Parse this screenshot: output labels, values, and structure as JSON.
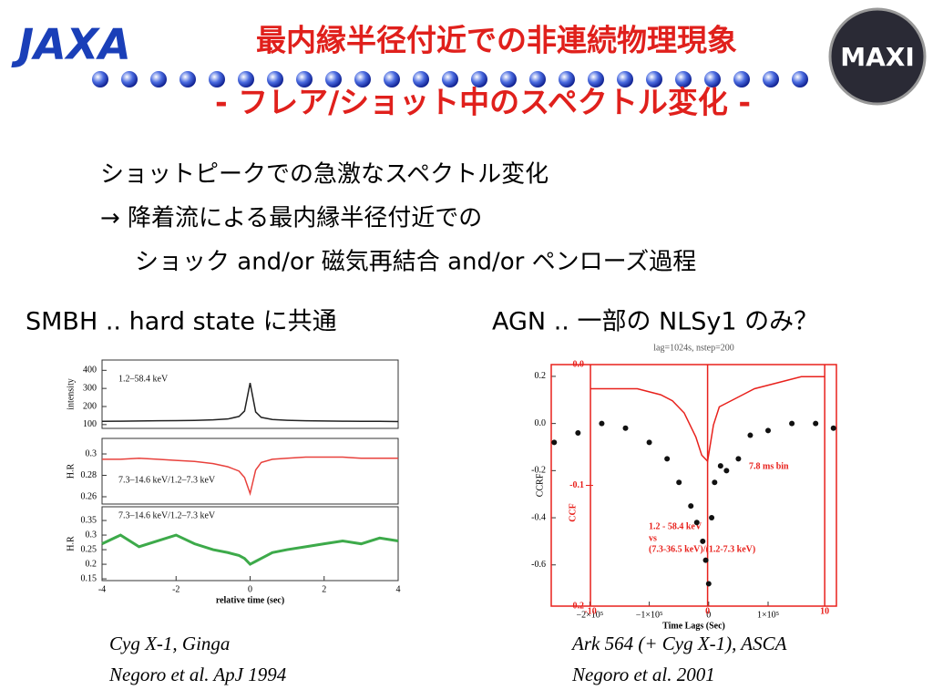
{
  "logos": {
    "left": "JAXA",
    "right": "MAXI"
  },
  "header": {
    "title": "最内縁半径付近での非連続物理現象",
    "subtitle": "- フレア/ショット中のスペクトル変化 -"
  },
  "body": {
    "lines": [
      "ショットピークでの急激なスペクトル変化",
      "→ 降着流による最内縁半径付近での",
      "ショック and/or 磁気再結合 and/or ペンローズ過程"
    ]
  },
  "labels": {
    "left": "SMBH .. hard state に共通",
    "right": "AGN .. 一部の NLSy1 のみ？"
  },
  "chart_data": [
    {
      "type": "line",
      "ylabel": "intensity",
      "annotations": [
        "1.2–58.4 keV"
      ],
      "xlim": [
        -4,
        4
      ],
      "ylim": [
        79,
        457
      ],
      "yticks": [
        100,
        200,
        300,
        400
      ],
      "series": [
        {
          "color": "#222222",
          "x": [
            -4,
            -3.5,
            -3,
            -2.5,
            -2,
            -1.5,
            -1,
            -0.6,
            -0.3,
            -0.15,
            0,
            0.15,
            0.3,
            0.6,
            1,
            1.5,
            2,
            2.5,
            3,
            3.5,
            4
          ],
          "values": [
            118,
            119,
            120,
            121,
            122,
            123,
            126,
            131,
            145,
            175,
            330,
            170,
            140,
            128,
            124,
            121,
            120,
            119,
            118,
            118,
            117
          ]
        }
      ]
    },
    {
      "type": "line",
      "ylabel": "H.R",
      "annotations": [
        "7.3–14.6 keV/1.2–7.3 keV"
      ],
      "xlim": [
        -4,
        4
      ],
      "ylim": [
        0.2532,
        0.3145
      ],
      "yticks": [
        0.26,
        0.28,
        0.3
      ],
      "series": [
        {
          "color": "#e8413c",
          "x": [
            -4,
            -3.5,
            -3,
            -2.5,
            -2,
            -1.5,
            -1,
            -0.6,
            -0.3,
            -0.15,
            0,
            0.15,
            0.3,
            0.6,
            1,
            1.5,
            2,
            2.5,
            3,
            3.5,
            4
          ],
          "values": [
            0.295,
            0.295,
            0.296,
            0.295,
            0.294,
            0.293,
            0.291,
            0.288,
            0.284,
            0.278,
            0.263,
            0.285,
            0.292,
            0.295,
            0.296,
            0.297,
            0.297,
            0.297,
            0.296,
            0.296,
            0.296
          ]
        }
      ]
    },
    {
      "type": "line",
      "ylabel": "H.R",
      "xlabel": "relative time (sec)",
      "annotations": [
        "7.3–14.6 keV/1.2–7.3 keV"
      ],
      "xlim": [
        -4,
        4
      ],
      "xticks": [
        -4,
        -2,
        0,
        2,
        4
      ],
      "ylim": [
        0.144,
        0.397
      ],
      "yticks": [
        0.15,
        0.2,
        0.25,
        0.3,
        0.35
      ],
      "series": [
        {
          "color": "#3daa4a",
          "x": [
            -4,
            -3.5,
            -3,
            -2.5,
            -2,
            -1.5,
            -1,
            -0.6,
            -0.3,
            -0.15,
            0,
            0.15,
            0.3,
            0.6,
            1,
            1.5,
            2,
            2.5,
            3,
            3.5,
            4
          ],
          "values": [
            0.27,
            0.3,
            0.26,
            0.28,
            0.3,
            0.27,
            0.25,
            0.24,
            0.23,
            0.22,
            0.2,
            0.21,
            0.22,
            0.24,
            0.25,
            0.26,
            0.27,
            0.28,
            0.27,
            0.29,
            0.28
          ]
        }
      ]
    },
    {
      "type": "scatter",
      "title": "lag=1024s, nstep=200",
      "ylabel": "CCRF",
      "y2label": "CCF",
      "xlabel": "Time Lags (Sec)",
      "annotations": [
        "1.2 - 58.4 keV",
        "vs",
        "(7.3-36.5 keV)/(1.2-7.3 keV)",
        "7.8 ms bin"
      ],
      "xlim": [
        -265000,
        215000
      ],
      "xticks": [
        {
          "value": -200000,
          "label": "−2×10⁵"
        },
        {
          "value": -100000,
          "label": "−1×10⁵"
        },
        0,
        {
          "value": 100000,
          "label": "1×10⁵"
        }
      ],
      "ylim": [
        -0.775,
        0.25
      ],
      "yticks": [
        0.2,
        {
          "value": 0,
          "label": "0.0"
        },
        -0.2,
        -0.4,
        -0.6
      ],
      "x2lim": [
        -13.35,
        11.0
      ],
      "x2ticks": [
        -10,
        0,
        10
      ],
      "y2lim": [
        -0.2,
        0.0
      ],
      "y2ticks": [
        {
          "value": 0,
          "label": "0.0"
        },
        -0.1,
        -0.2
      ],
      "series": [
        {
          "color": "#111111",
          "x": [
            -260000,
            -220000,
            -180000,
            -140000,
            -100000,
            -70000,
            -50000,
            -30000,
            -20000,
            -10000,
            -5000,
            0,
            5000,
            10000,
            20000,
            30000,
            50000,
            70000,
            100000,
            140000,
            180000,
            210000
          ],
          "values": [
            -0.08,
            -0.04,
            0.0,
            -0.02,
            -0.08,
            -0.15,
            -0.25,
            -0.35,
            -0.42,
            -0.5,
            -0.58,
            -0.68,
            -0.4,
            -0.25,
            -0.18,
            -0.2,
            -0.15,
            -0.05,
            -0.03,
            0.0,
            0.0,
            -0.02
          ]
        },
        {
          "color": "#e8211c",
          "axis": "y2",
          "x": [
            -10,
            -8,
            -6,
            -4,
            -3,
            -2,
            -1,
            -0.5,
            0,
            0.5,
            1,
            2,
            3,
            4,
            6,
            8,
            10
          ],
          "values": [
            -0.02,
            -0.02,
            -0.02,
            -0.025,
            -0.03,
            -0.04,
            -0.06,
            -0.075,
            -0.08,
            -0.05,
            -0.035,
            -0.03,
            -0.025,
            -0.02,
            -0.015,
            -0.01,
            -0.01
          ]
        }
      ]
    }
  ],
  "captions": {
    "left": [
      "Cyg X-1, Ginga",
      "Negoro et al. ApJ 1994"
    ],
    "right": [
      "Ark 564 (+ Cyg X-1), ASCA",
      "Negoro et al. 2001"
    ]
  }
}
